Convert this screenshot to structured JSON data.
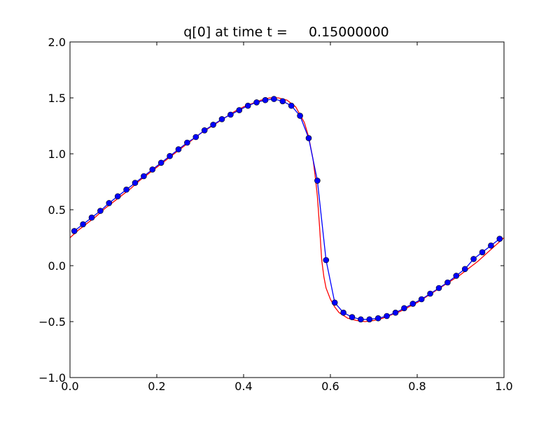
{
  "chart_data": {
    "type": "line",
    "title": "q[0] at time t =     0.15000000",
    "xlabel": "",
    "ylabel": "",
    "xlim": [
      0.0,
      1.0
    ],
    "ylim": [
      -1.0,
      2.0
    ],
    "grid": false,
    "x_ticks": [
      0.0,
      0.2,
      0.4,
      0.6,
      0.8,
      1.0
    ],
    "x_tick_labels": [
      "0.0",
      "0.2",
      "0.4",
      "0.6",
      "0.8",
      "1.0"
    ],
    "y_ticks": [
      -1.0,
      -0.5,
      0.0,
      0.5,
      1.0,
      1.5,
      2.0
    ],
    "y_tick_labels": [
      "−1.0",
      "−0.5",
      "0.0",
      "0.5",
      "1.0",
      "1.5",
      "2.0"
    ],
    "series": [
      {
        "style": "line-with-markers",
        "color": "#0000ff",
        "x": [
          0.01,
          0.03,
          0.05,
          0.07,
          0.09,
          0.11,
          0.13,
          0.15,
          0.17,
          0.19,
          0.21,
          0.23,
          0.25,
          0.27,
          0.29,
          0.31,
          0.33,
          0.35,
          0.37,
          0.39,
          0.41,
          0.43,
          0.45,
          0.47,
          0.49,
          0.51,
          0.53,
          0.55,
          0.57,
          0.59,
          0.61,
          0.63,
          0.65,
          0.67,
          0.69,
          0.71,
          0.73,
          0.75,
          0.77,
          0.79,
          0.81,
          0.83,
          0.85,
          0.87,
          0.89,
          0.91,
          0.93,
          0.95,
          0.97,
          0.99
        ],
        "values": [
          0.31,
          0.37,
          0.43,
          0.49,
          0.56,
          0.62,
          0.68,
          0.74,
          0.8,
          0.86,
          0.92,
          0.98,
          1.04,
          1.1,
          1.15,
          1.21,
          1.26,
          1.31,
          1.35,
          1.39,
          1.43,
          1.46,
          1.48,
          1.49,
          1.47,
          1.43,
          1.34,
          1.14,
          0.76,
          0.05,
          -0.33,
          -0.42,
          -0.46,
          -0.48,
          -0.48,
          -0.47,
          -0.45,
          -0.42,
          -0.38,
          -0.34,
          -0.3,
          -0.25,
          -0.2,
          -0.15,
          -0.09,
          -0.03,
          0.06,
          0.12,
          0.18,
          0.24
        ]
      },
      {
        "style": "line",
        "color": "#ff0000",
        "x": [
          0.0,
          0.02,
          0.04,
          0.06,
          0.08,
          0.1,
          0.12,
          0.14,
          0.16,
          0.18,
          0.2,
          0.22,
          0.24,
          0.26,
          0.28,
          0.3,
          0.32,
          0.34,
          0.36,
          0.38,
          0.4,
          0.42,
          0.44,
          0.46,
          0.48,
          0.5,
          0.52,
          0.54,
          0.55,
          0.56,
          0.565,
          0.57,
          0.575,
          0.58,
          0.585,
          0.59,
          0.6,
          0.61,
          0.62,
          0.64,
          0.66,
          0.68,
          0.7,
          0.72,
          0.74,
          0.76,
          0.78,
          0.8,
          0.82,
          0.84,
          0.86,
          0.88,
          0.9,
          0.92,
          0.94,
          0.96,
          0.98,
          1.0
        ],
        "values": [
          0.25,
          0.32,
          0.38,
          0.44,
          0.51,
          0.57,
          0.63,
          0.69,
          0.76,
          0.82,
          0.88,
          0.94,
          1.0,
          1.06,
          1.12,
          1.18,
          1.23,
          1.28,
          1.33,
          1.38,
          1.42,
          1.45,
          1.48,
          1.5,
          1.5,
          1.48,
          1.42,
          1.28,
          1.15,
          0.95,
          0.8,
          0.62,
          0.35,
          0.05,
          -0.1,
          -0.2,
          -0.3,
          -0.37,
          -0.42,
          -0.47,
          -0.49,
          -0.5,
          -0.49,
          -0.47,
          -0.44,
          -0.41,
          -0.37,
          -0.33,
          -0.28,
          -0.23,
          -0.18,
          -0.13,
          -0.08,
          -0.02,
          0.04,
          0.11,
          0.18,
          0.25
        ]
      }
    ]
  }
}
